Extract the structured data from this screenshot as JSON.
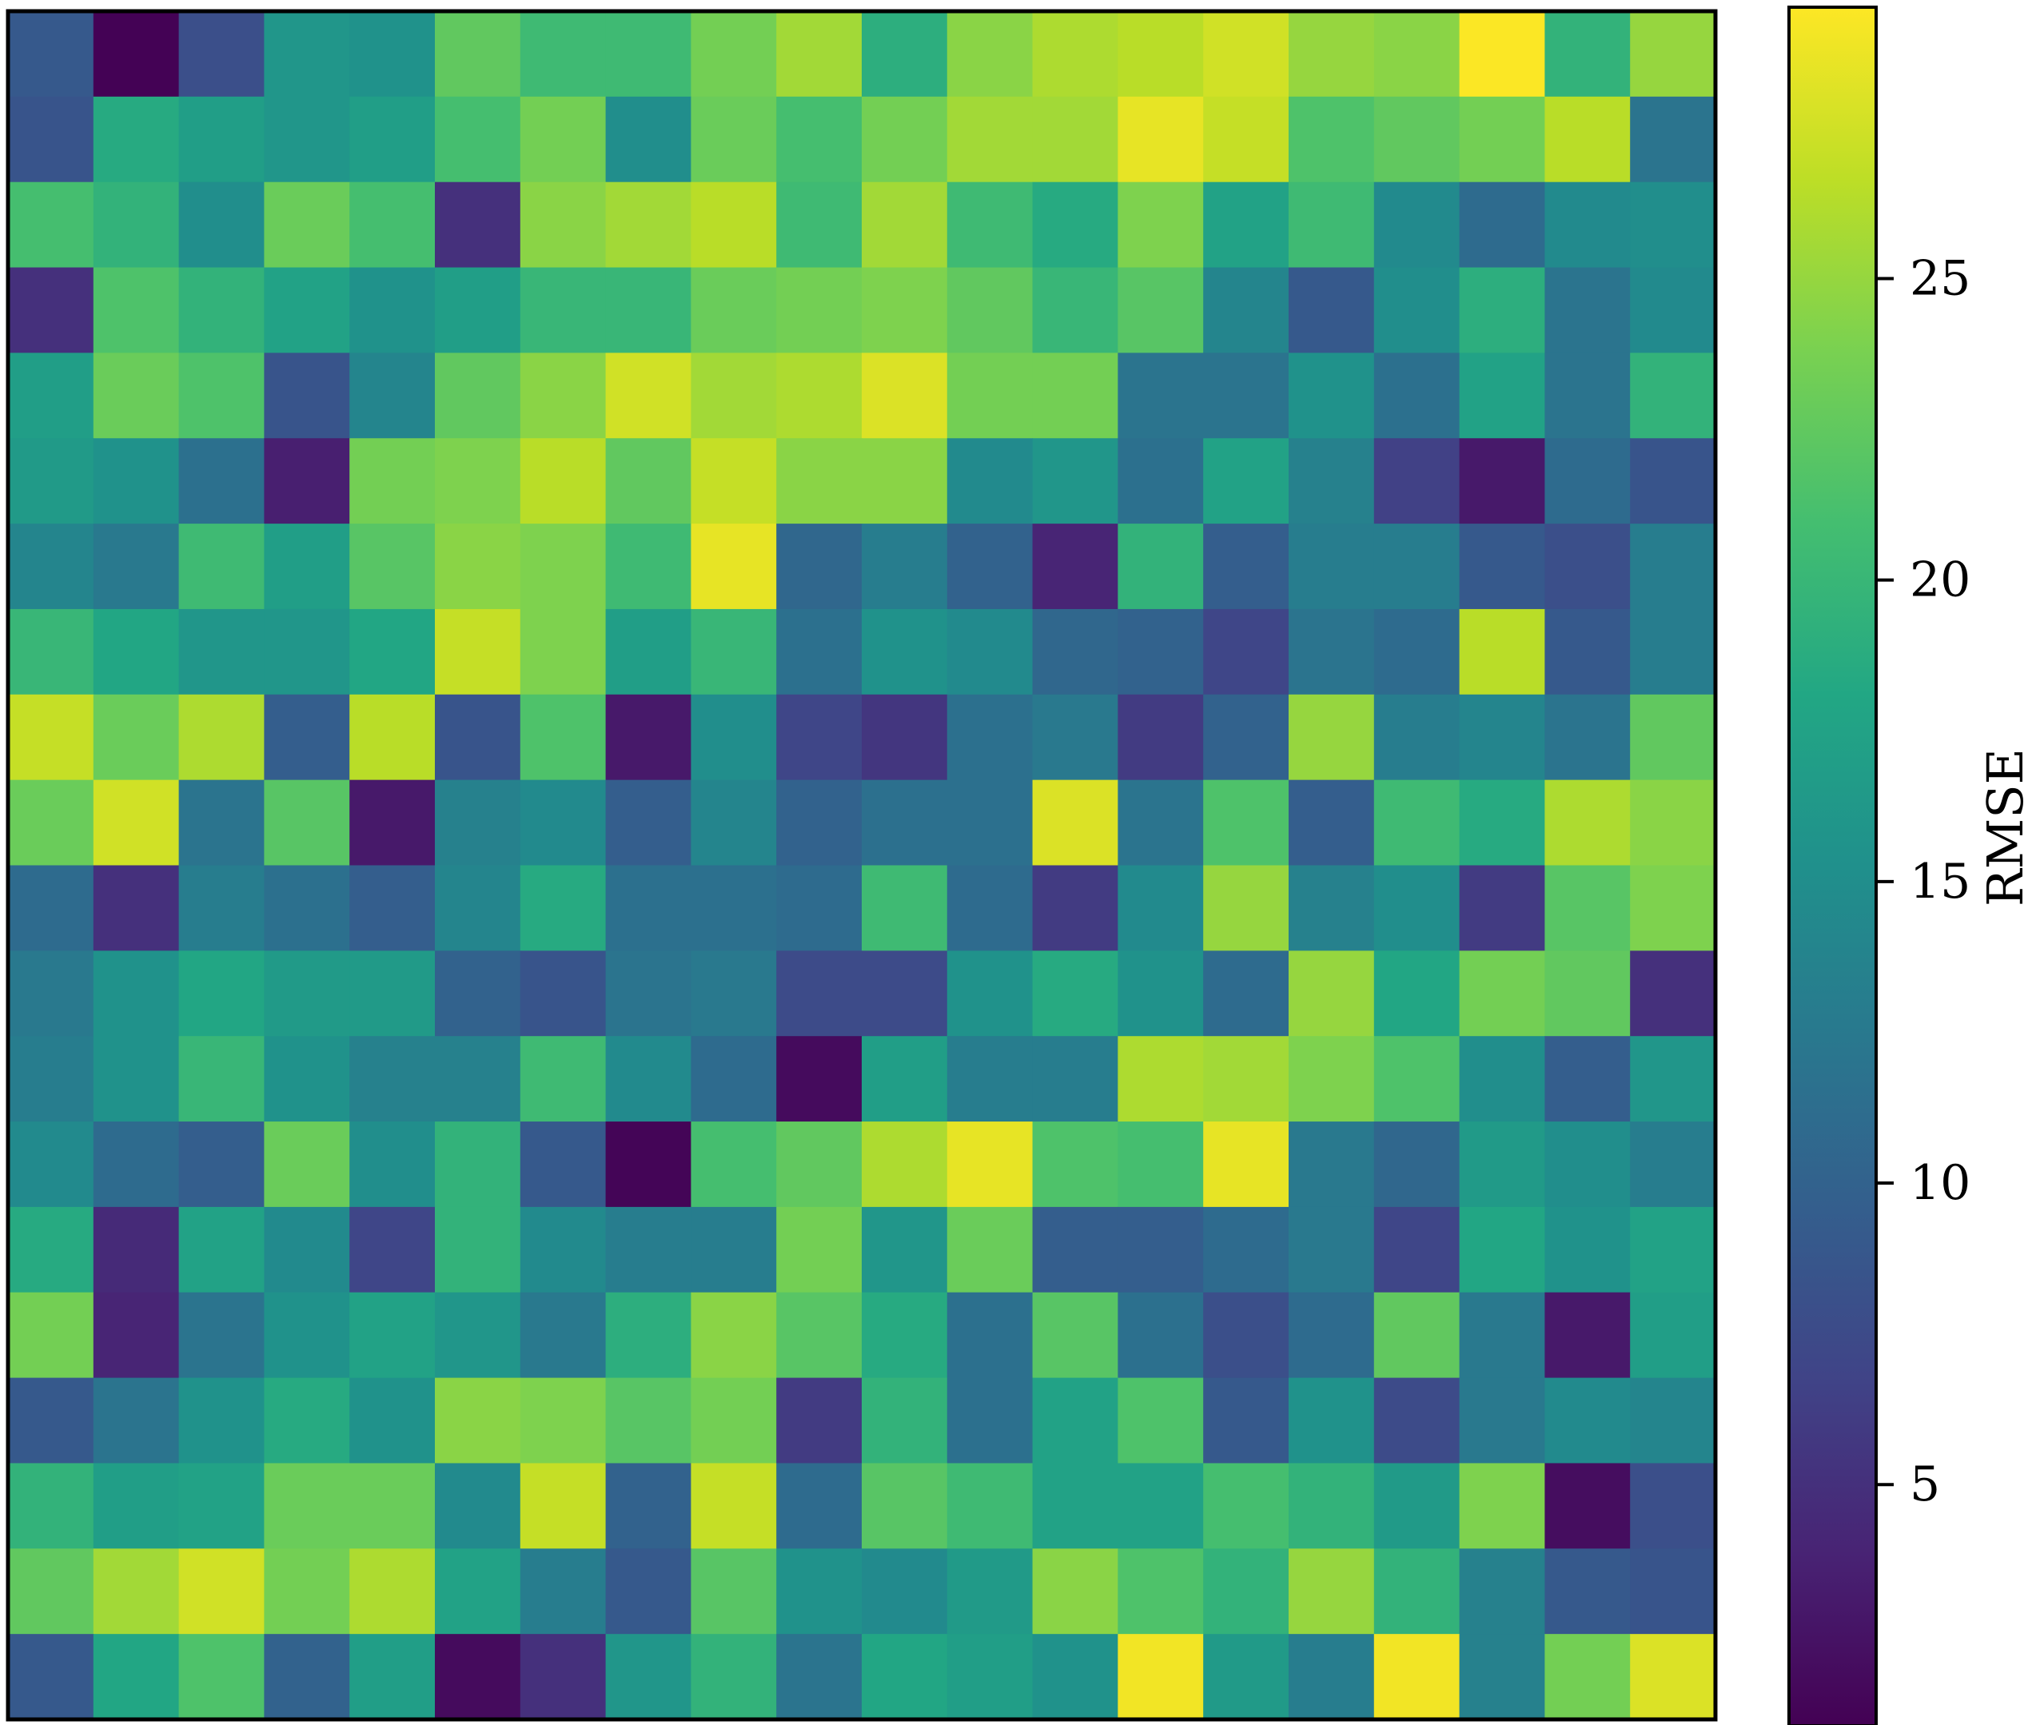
{
  "chart_data": {
    "type": "heatmap",
    "rows": 20,
    "cols": 20,
    "colormap": "viridis",
    "colorbar": {
      "label": "RMSE",
      "range": [
        1,
        29.5
      ],
      "ticks": [
        5,
        10,
        15,
        20,
        25
      ],
      "tick_labels": [
        "5",
        "10",
        "15",
        "20",
        "25"
      ]
    },
    "xlabel": "",
    "ylabel": "",
    "title": "",
    "values": [
      [
        9,
        1.1,
        8,
        16,
        15.5,
        22.5,
        20.5,
        20.5,
        23.5,
        25.5,
        19,
        24.5,
        26,
        26.5,
        27.5,
        25,
        24.5,
        29.4,
        19.5,
        25
      ],
      [
        8.5,
        18.5,
        17,
        16,
        17,
        21,
        23.5,
        15,
        23,
        21,
        23.5,
        25.5,
        25.5,
        28.5,
        27,
        21.5,
        22.5,
        23.5,
        26.5,
        12
      ],
      [
        21,
        19.5,
        15,
        23,
        21,
        5,
        24.5,
        25.5,
        26.5,
        20.5,
        25.5,
        20.5,
        18.5,
        24,
        17.5,
        20.5,
        14.5,
        11,
        14.5,
        15
      ],
      [
        5,
        21.5,
        19.5,
        17.5,
        15.5,
        17,
        20,
        20,
        23,
        23.5,
        24,
        22.5,
        20,
        22,
        14,
        9,
        15,
        19,
        12,
        14.5
      ],
      [
        17,
        23,
        21.5,
        8.5,
        14,
        22.5,
        24.5,
        27.5,
        25.5,
        26,
        28,
        23.5,
        23.5,
        12,
        12,
        15.5,
        11.5,
        17.5,
        12,
        19.5
      ],
      [
        16.5,
        15.5,
        11.5,
        3.5,
        23.5,
        24,
        26.5,
        22.5,
        27,
        24.5,
        24.5,
        14.5,
        16,
        11.5,
        17.5,
        13.5,
        6.5,
        3,
        11,
        8.5
      ],
      [
        14,
        12.5,
        20.5,
        17,
        22,
        24.5,
        24,
        20.5,
        28.5,
        10.5,
        13,
        10,
        4,
        19.5,
        9.5,
        13,
        13,
        9,
        8,
        13
      ],
      [
        20,
        18,
        16,
        16,
        18,
        27,
        24,
        17,
        20,
        11.5,
        15.5,
        14.5,
        10.5,
        10,
        7,
        12,
        11,
        26.5,
        9,
        13
      ],
      [
        27,
        23,
        26,
        9.5,
        26.5,
        8.5,
        21.5,
        3,
        15,
        7,
        5.5,
        11.5,
        12.5,
        6,
        10,
        25,
        13,
        14,
        12,
        22.5
      ],
      [
        23,
        27.5,
        12,
        22,
        3,
        13.5,
        14.5,
        9.5,
        14,
        10,
        11.5,
        11.5,
        28,
        12,
        21.5,
        9.5,
        20.5,
        18.5,
        26,
        24.5
      ],
      [
        11,
        5,
        13,
        11.5,
        9.5,
        14,
        18.5,
        11.5,
        11.5,
        11,
        20.5,
        11,
        6,
        14.5,
        25,
        13.5,
        15,
        6,
        22,
        24
      ],
      [
        12.5,
        15.5,
        18,
        16.5,
        16.5,
        10,
        8.5,
        12,
        12.5,
        7.5,
        7.5,
        15.5,
        18.5,
        15.5,
        11,
        25,
        18,
        23.5,
        22.5,
        5
      ],
      [
        13,
        15.5,
        20,
        15.5,
        13.5,
        13.5,
        20.5,
        14.5,
        11,
        1.8,
        17,
        13,
        13,
        26,
        25.5,
        24,
        21.5,
        15,
        9.5,
        16
      ],
      [
        14.5,
        11,
        9.5,
        23,
        15,
        19.5,
        9,
        1.3,
        21,
        22.5,
        26,
        28.5,
        21.5,
        21,
        28.5,
        12.5,
        10.5,
        16.5,
        15,
        13
      ],
      [
        18.5,
        4.5,
        17.5,
        14.5,
        7,
        19.5,
        14.5,
        13,
        13,
        23.5,
        16,
        23,
        9.5,
        9.5,
        11,
        12.5,
        7,
        18,
        15.5,
        17.5
      ],
      [
        23.5,
        4,
        12,
        15.5,
        17.5,
        16,
        12.5,
        19,
        24.5,
        22,
        18.5,
        11.5,
        22,
        11.5,
        8,
        11,
        22.5,
        12.5,
        3,
        17
      ],
      [
        9,
        12,
        15.5,
        18.5,
        15.5,
        24.5,
        24,
        22,
        23.5,
        6,
        19.5,
        11.5,
        17.5,
        21.5,
        9,
        15.5,
        7.5,
        12.5,
        14.5,
        14
      ],
      [
        19.5,
        17,
        17.5,
        23,
        23,
        14.5,
        27,
        10,
        27,
        11,
        22,
        20.5,
        17.5,
        17.5,
        21,
        19.5,
        16.5,
        24,
        2,
        8
      ],
      [
        22.5,
        25.5,
        27.5,
        23.5,
        26,
        17.5,
        13,
        9,
        22,
        15.5,
        14.5,
        16.5,
        24.5,
        21.5,
        19.5,
        25,
        19.5,
        13.5,
        9,
        8.5
      ],
      [
        9,
        18,
        21.5,
        10,
        17,
        1.8,
        5,
        16,
        19.5,
        12,
        18,
        17,
        15.5,
        29,
        16.5,
        13,
        29,
        13.5,
        23.5,
        28
      ]
    ]
  }
}
